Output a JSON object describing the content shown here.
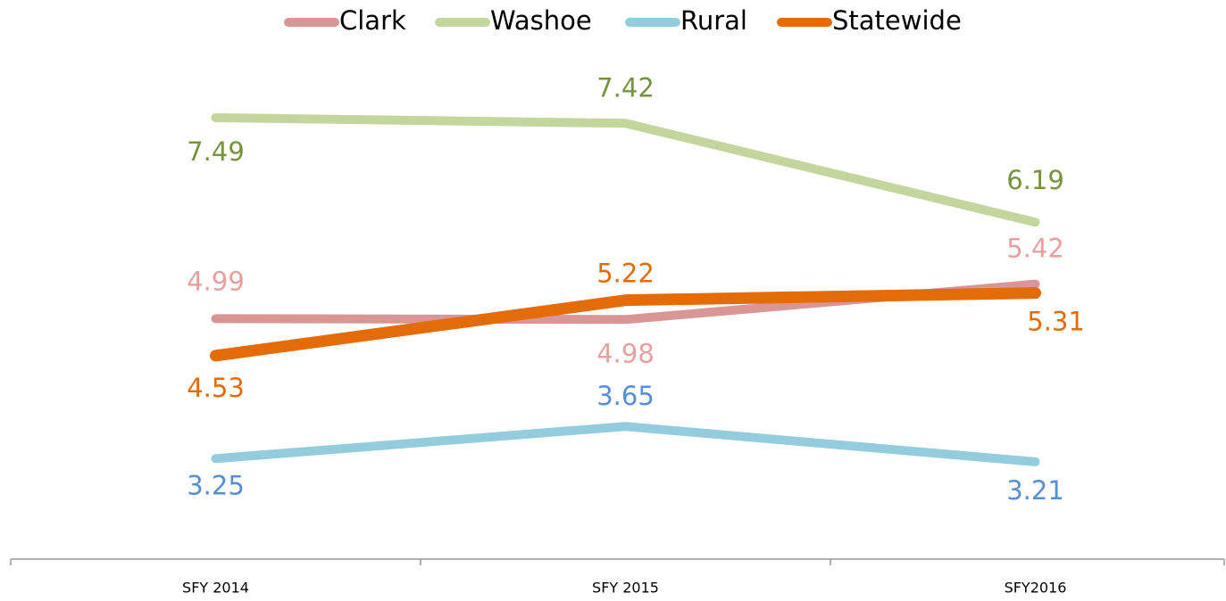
{
  "chart_data": {
    "type": "line",
    "categories": [
      "SFY 2014",
      "SFY 2015",
      "SFY2016"
    ],
    "series": [
      {
        "name": "Clark",
        "color": "#d99694",
        "label_color": "#e6a0a0",
        "values": [
          4.99,
          4.98,
          5.42
        ]
      },
      {
        "name": "Washoe",
        "color": "#c3d69b",
        "label_color": "#77933c",
        "values": [
          7.49,
          7.42,
          6.19
        ]
      },
      {
        "name": "Rural",
        "color": "#93cddd",
        "label_color": "#558ed5",
        "values": [
          3.25,
          3.65,
          3.21
        ]
      },
      {
        "name": "Statewide",
        "color": "#e36c09",
        "label_color": "#e36c09",
        "values": [
          4.53,
          5.22,
          5.31
        ]
      }
    ],
    "ylim": [
      2,
      8
    ],
    "legend": "top"
  }
}
